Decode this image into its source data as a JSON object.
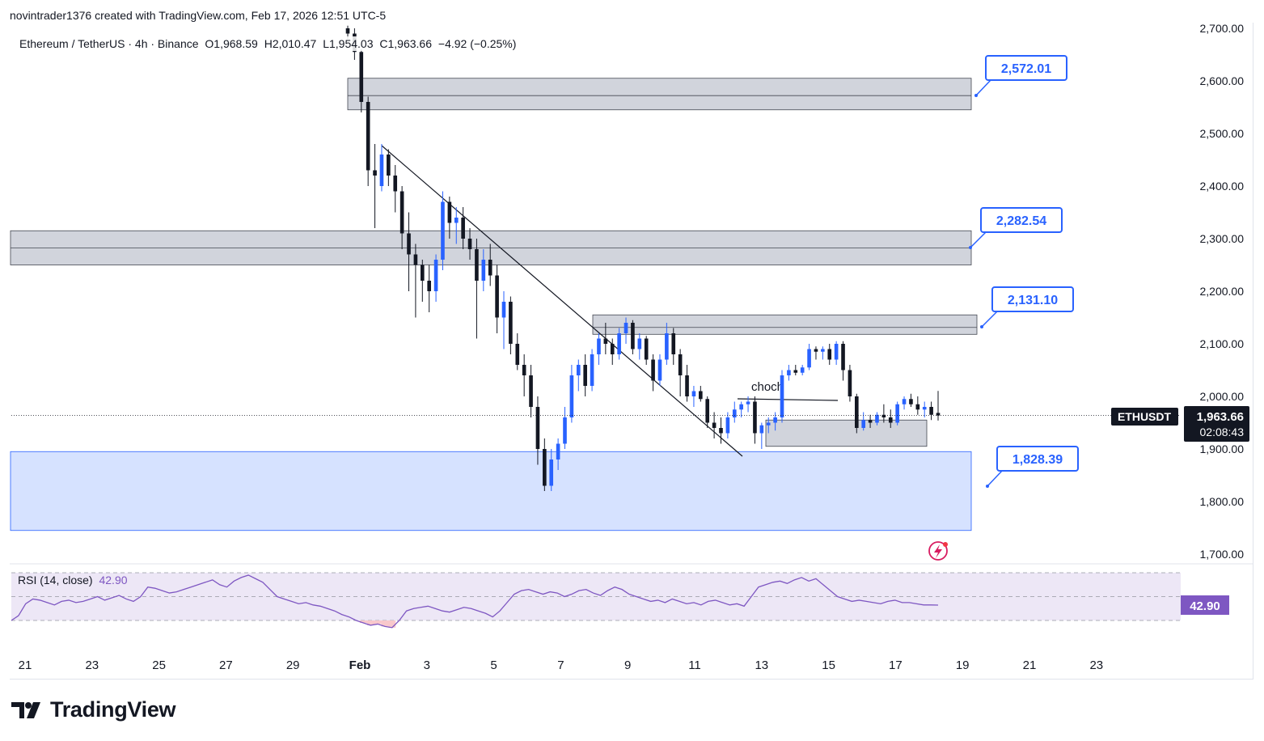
{
  "header": {
    "attribution": "novintrader1376 created with TradingView.com, Feb 17, 2026 12:51 UTC-5"
  },
  "legend": {
    "symbol_text": "Ethereum / TetherUS · 4h · Binance",
    "open": "O1,968.59",
    "high": "H2,010.47",
    "low": "L1,954.03",
    "close": "C1,963.66",
    "change": "−4.92 (−0.25%)"
  },
  "rsi": {
    "label": "RSI (14, close)",
    "value_text": "42.90",
    "badge_text": "42.90"
  },
  "price_badge": {
    "symbol": "ETHUSDT",
    "price": "1,963.66",
    "countdown": "02:08:43"
  },
  "footer": {
    "brand": "TradingView"
  },
  "colors": {
    "bull": "#2962ff",
    "bear": "#131722",
    "zone_gray": "#d1d4dc",
    "zone_blue": "#d6e2ff",
    "label_blue": "#2962ff",
    "rsi_line": "#7e57c2",
    "rsi_band": "#ede7f6",
    "rsi_oversold_fill": "#f8c8cc"
  },
  "chart_data": [
    {
      "type": "candlestick",
      "symbol": "ETHUSDT",
      "timeframe": "4h",
      "y_axis_ticks": [
        "1,700.00",
        "1,800.00",
        "1,900.00",
        "2,000.00",
        "2,100.00",
        "2,200.00",
        "2,300.00",
        "2,400.00",
        "2,500.00",
        "2,600.00",
        "2,700.00"
      ],
      "x_axis_ticks": [
        "21",
        "23",
        "25",
        "27",
        "29",
        "Feb",
        "3",
        "5",
        "7",
        "9",
        "11",
        "13",
        "15",
        "17",
        "19",
        "21",
        "23"
      ],
      "ylim": [
        1680,
        2705
      ],
      "last_price": 1963.66,
      "zones": [
        {
          "type": "supply",
          "top": 2605,
          "bottom": 2545,
          "label": "2,572.01",
          "mid": 2572.01
        },
        {
          "type": "supply",
          "top": 2315,
          "bottom": 2250,
          "label": "2,282.54",
          "mid": 2282.54
        },
        {
          "type": "supply",
          "top": 2155,
          "bottom": 2118,
          "label": "2,131.10",
          "mid": 2131.1
        },
        {
          "type": "demand",
          "top": 1895,
          "bottom": 1745,
          "label": "1,828.39"
        },
        {
          "type": "demand_small",
          "top": 1955,
          "bottom": 1905
        }
      ],
      "annotations": [
        "choch"
      ],
      "trendline": {
        "from_date": "Jan 30",
        "from_price": 2475,
        "to_date": "Feb 11",
        "to_price": 1893
      },
      "candles": [
        [
          2700,
          2705,
          2680,
          2690
        ],
        [
          2690,
          2700,
          2640,
          2655
        ],
        [
          2655,
          2660,
          2540,
          2560
        ],
        [
          2560,
          2570,
          2400,
          2430
        ],
        [
          2430,
          2480,
          2320,
          2420
        ],
        [
          2400,
          2480,
          2390,
          2460
        ],
        [
          2460,
          2470,
          2400,
          2420
        ],
        [
          2420,
          2440,
          2350,
          2390
        ],
        [
          2390,
          2400,
          2280,
          2310
        ],
        [
          2310,
          2350,
          2200,
          2270
        ],
        [
          2270,
          2290,
          2150,
          2250
        ],
        [
          2250,
          2260,
          2180,
          2220
        ],
        [
          2220,
          2250,
          2160,
          2200
        ],
        [
          2200,
          2270,
          2180,
          2260
        ],
        [
          2260,
          2390,
          2240,
          2370
        ],
        [
          2370,
          2380,
          2300,
          2330
        ],
        [
          2330,
          2360,
          2290,
          2340
        ],
        [
          2340,
          2360,
          2280,
          2300
        ],
        [
          2300,
          2320,
          2260,
          2280
        ],
        [
          2280,
          2300,
          2110,
          2220
        ],
        [
          2220,
          2280,
          2200,
          2260
        ],
        [
          2260,
          2290,
          2210,
          2230
        ],
        [
          2230,
          2250,
          2120,
          2150
        ],
        [
          2150,
          2200,
          2090,
          2180
        ],
        [
          2180,
          2190,
          2080,
          2100
        ],
        [
          2100,
          2120,
          2050,
          2060
        ],
        [
          2060,
          2080,
          2000,
          2040
        ],
        [
          2040,
          2060,
          1960,
          1980
        ],
        [
          1980,
          2000,
          1870,
          1900
        ],
        [
          1900,
          1920,
          1820,
          1830
        ],
        [
          1830,
          1900,
          1820,
          1880
        ],
        [
          1880,
          1920,
          1860,
          1910
        ],
        [
          1910,
          1980,
          1900,
          1960
        ],
        [
          1960,
          2060,
          1950,
          2040
        ],
        [
          2040,
          2070,
          2010,
          2060
        ],
        [
          2060,
          2080,
          2000,
          2020
        ],
        [
          2020,
          2090,
          2010,
          2080
        ],
        [
          2080,
          2120,
          2060,
          2110
        ],
        [
          2110,
          2140,
          2080,
          2100
        ],
        [
          2100,
          2110,
          2060,
          2080
        ],
        [
          2080,
          2130,
          2070,
          2120
        ],
        [
          2120,
          2150,
          2100,
          2140
        ],
        [
          2140,
          2145,
          2080,
          2090
        ],
        [
          2090,
          2120,
          2070,
          2110
        ],
        [
          2110,
          2115,
          2060,
          2070
        ],
        [
          2070,
          2080,
          2010,
          2030
        ],
        [
          2030,
          2080,
          2020,
          2070
        ],
        [
          2070,
          2140,
          2060,
          2120
        ],
        [
          2120,
          2130,
          2060,
          2080
        ],
        [
          2080,
          2090,
          2000,
          2040
        ],
        [
          2040,
          2060,
          1990,
          2000
        ],
        [
          2000,
          2020,
          1980,
          2010
        ],
        [
          2010,
          2020,
          1990,
          1995
        ],
        [
          1995,
          2000,
          1940,
          1950
        ],
        [
          1950,
          1970,
          1920,
          1940
        ],
        [
          1940,
          1960,
          1910,
          1930
        ],
        [
          1930,
          1970,
          1920,
          1960
        ],
        [
          1960,
          1990,
          1950,
          1975
        ],
        [
          1975,
          1990,
          1960,
          1985
        ],
        [
          1985,
          2000,
          1970,
          1990
        ],
        [
          1990,
          2000,
          1910,
          1930
        ],
        [
          1930,
          1950,
          1900,
          1945
        ],
        [
          1945,
          1960,
          1930,
          1950
        ],
        [
          1950,
          1970,
          1935,
          1960
        ],
        [
          1960,
          2050,
          1950,
          2040
        ],
        [
          2040,
          2060,
          2030,
          2050
        ],
        [
          2050,
          2060,
          2040,
          2045
        ],
        [
          2045,
          2060,
          2040,
          2055
        ],
        [
          2055,
          2100,
          2050,
          2090
        ],
        [
          2090,
          2095,
          2070,
          2085
        ],
        [
          2085,
          2095,
          2070,
          2090
        ],
        [
          2090,
          2100,
          2060,
          2070
        ],
        [
          2070,
          2105,
          2060,
          2100
        ],
        [
          2100,
          2105,
          2030,
          2050
        ],
        [
          2050,
          2060,
          1990,
          2000
        ],
        [
          2000,
          2005,
          1930,
          1940
        ],
        [
          1940,
          1970,
          1935,
          1955
        ],
        [
          1955,
          1965,
          1940,
          1950
        ],
        [
          1950,
          1970,
          1945,
          1965
        ],
        [
          1965,
          1985,
          1950,
          1960
        ],
        [
          1960,
          1975,
          1940,
          1950
        ],
        [
          1950,
          1990,
          1945,
          1985
        ],
        [
          1985,
          2000,
          1975,
          1995
        ],
        [
          1995,
          2005,
          1980,
          1985
        ],
        [
          1985,
          2000,
          1965,
          1975
        ],
        [
          1975,
          1990,
          1960,
          1980
        ],
        [
          1980,
          1990,
          1955,
          1965
        ],
        [
          1968.59,
          2010.47,
          1954.03,
          1963.66
        ]
      ],
      "rsi_values": [
        30,
        34,
        44,
        48,
        47,
        45,
        43,
        46,
        47,
        45,
        46,
        48,
        50,
        47,
        49,
        51,
        48,
        46,
        50,
        58,
        57,
        55,
        53,
        54,
        56,
        58,
        60,
        62,
        64,
        60,
        58,
        63,
        66,
        68,
        65,
        62,
        56,
        50,
        48,
        46,
        44,
        45,
        43,
        42,
        40,
        38,
        35,
        33,
        30,
        28,
        26,
        27,
        25,
        24,
        30,
        38,
        40,
        41,
        42,
        40,
        38,
        37,
        39,
        41,
        40,
        38,
        36,
        33,
        38,
        45,
        52,
        55,
        56,
        54,
        52,
        54,
        53,
        50,
        52,
        55,
        56,
        53,
        51,
        55,
        58,
        56,
        52,
        50,
        48,
        46,
        47,
        45,
        48,
        46,
        44,
        45,
        43,
        46,
        47,
        45,
        43,
        44,
        42,
        50,
        58,
        60,
        62,
        63,
        61,
        64,
        66,
        63,
        65,
        60,
        55,
        50,
        48,
        46,
        47,
        46,
        45,
        44,
        46,
        47,
        45,
        45,
        44,
        43,
        43,
        42.9
      ],
      "rsi_levels": {
        "upper": 70,
        "middle": 50,
        "lower": 30
      }
    }
  ]
}
